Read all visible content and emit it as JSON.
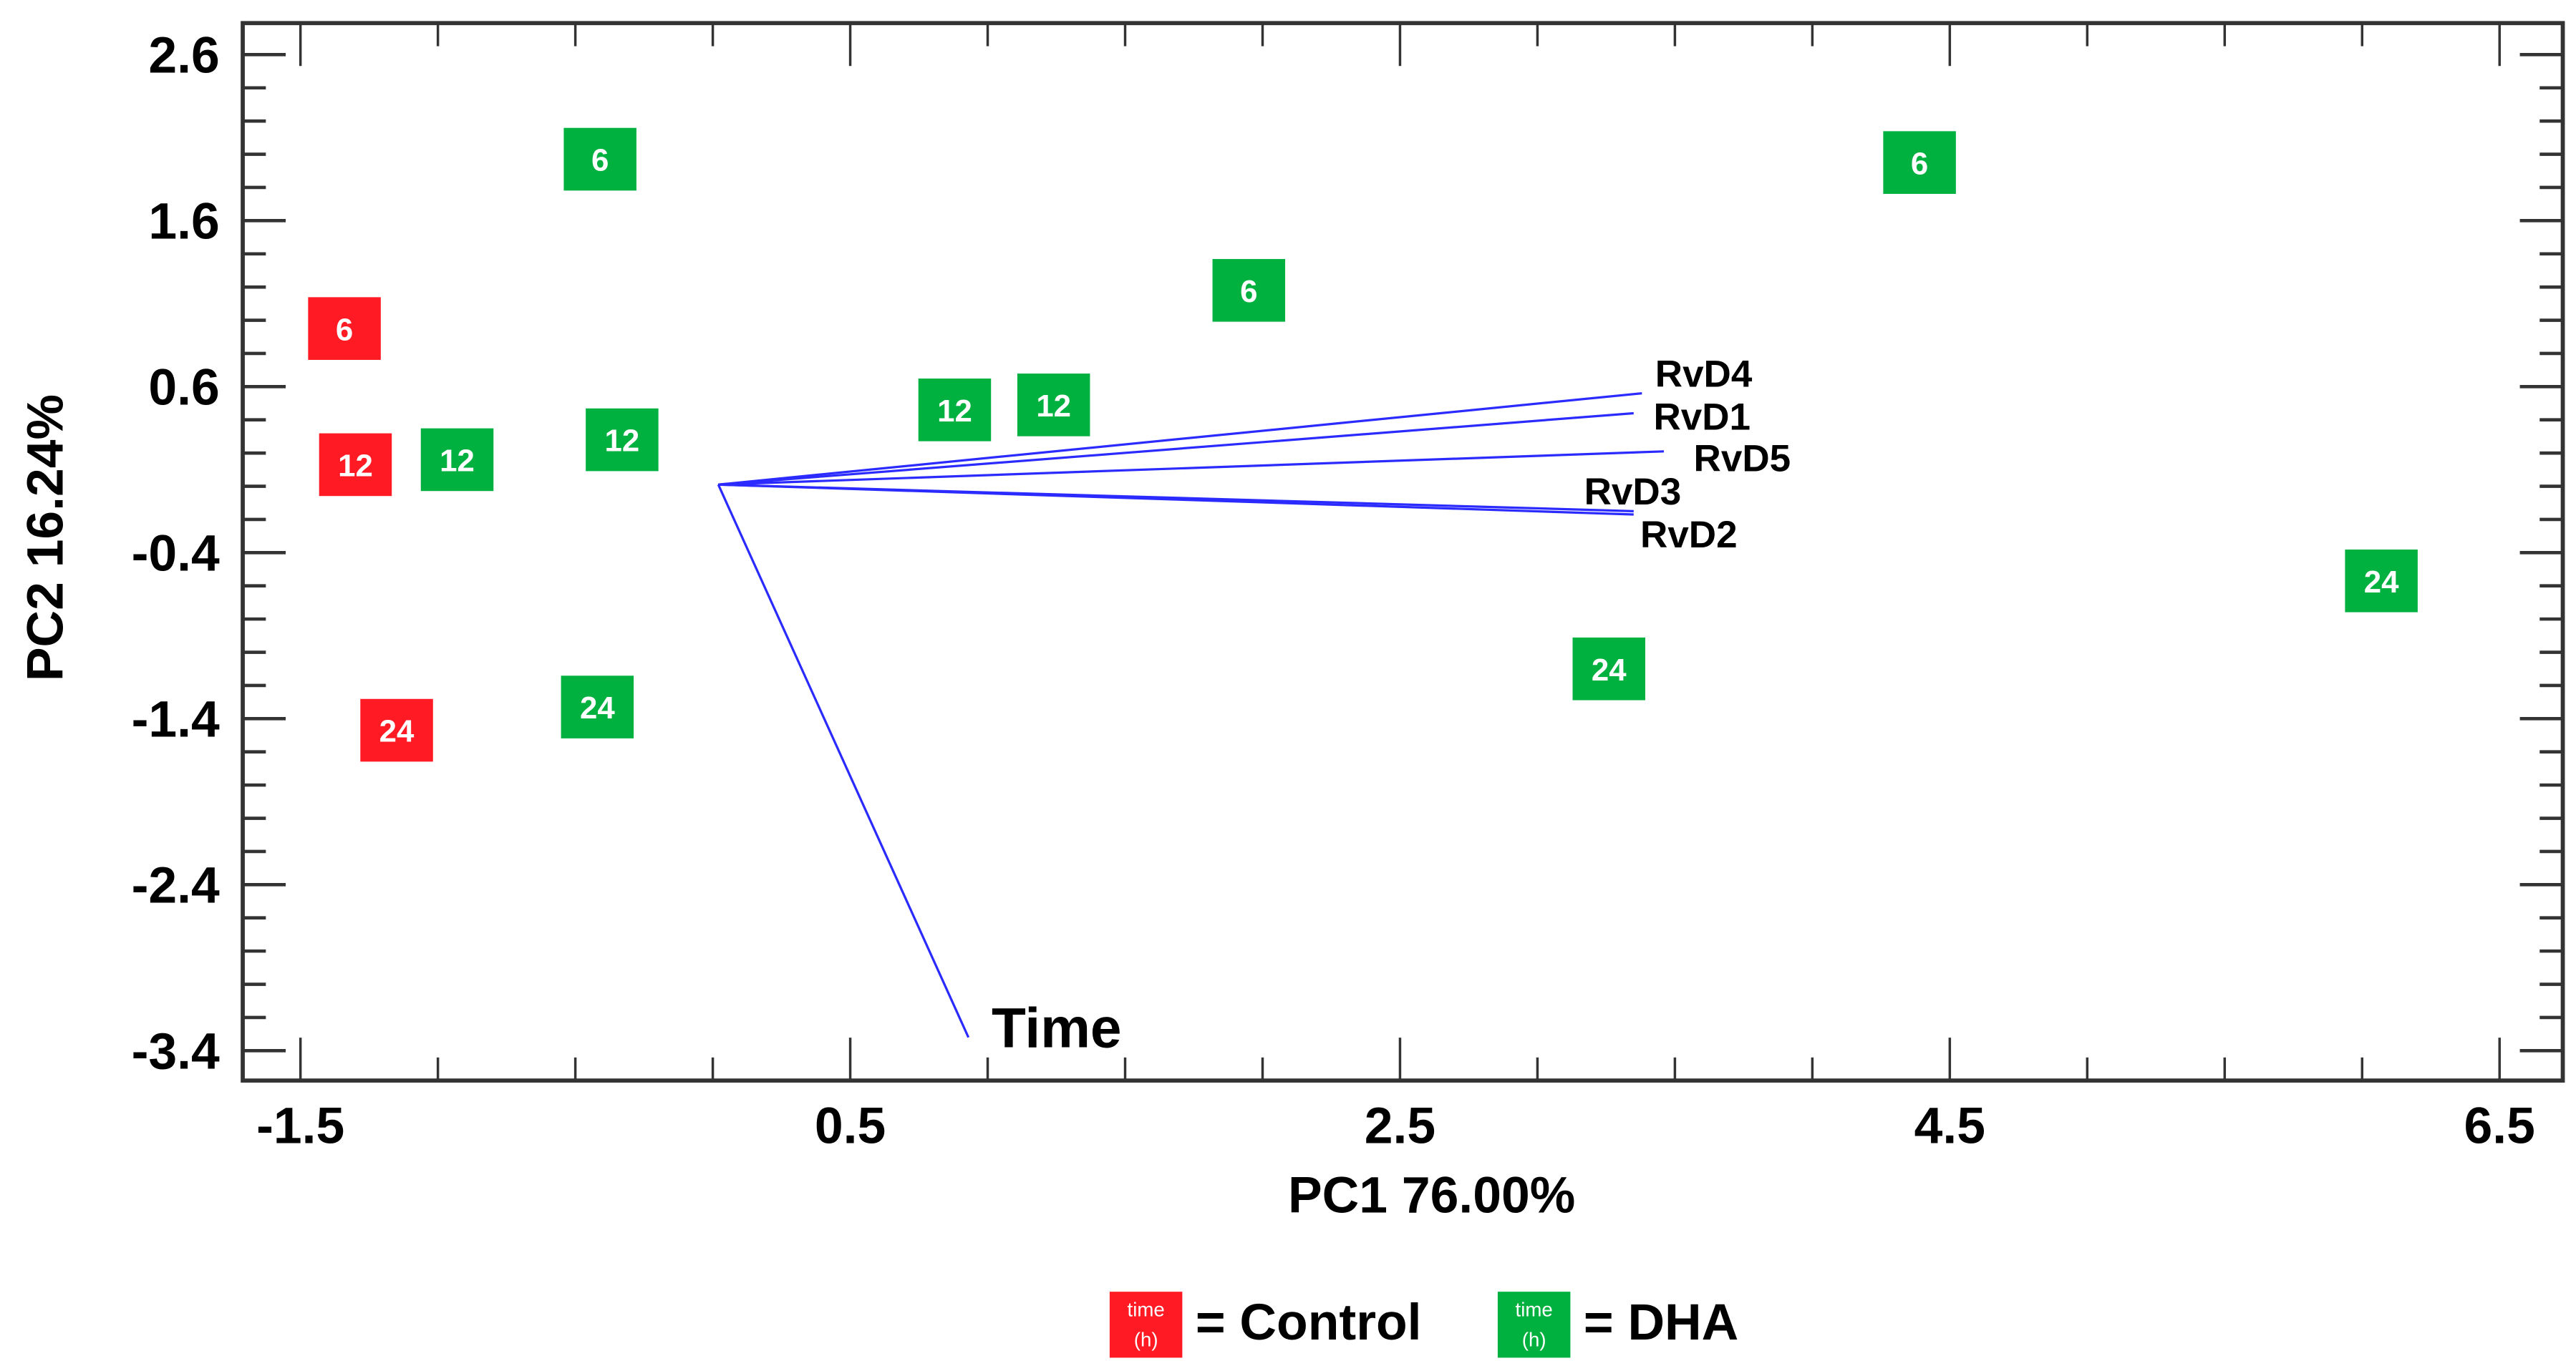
{
  "chart_data": {
    "type": "scatter",
    "subtype": "PCA biplot",
    "xlabel": "PC1 76.00%",
    "ylabel": "PC2 16.24%",
    "xlim": [
      -1.71,
      6.73
    ],
    "ylim": [
      -3.58,
      2.79
    ],
    "xticks": [
      -1.5,
      0.5,
      2.5,
      4.5,
      6.5
    ],
    "xtick_labels": [
      "-1.5",
      "0.5",
      "2.5",
      "4.5",
      "6.5"
    ],
    "x_minor_step": 0.5,
    "yticks": [
      2.6,
      1.6,
      0.6,
      -0.4,
      -1.4,
      -2.4,
      -3.4
    ],
    "ytick_labels": [
      "2.6",
      "1.6",
      "0.6",
      "-0.4",
      "-1.4",
      "-2.4",
      "-3.4"
    ],
    "y_minor_step": 0.2,
    "grid": false,
    "colors": {
      "Control": "#ff1a24",
      "DHA": "#00b140",
      "loading": "#2b2bff"
    },
    "series": [
      {
        "name": "Control",
        "points": [
          {
            "x": -1.34,
            "y": 0.95,
            "label": "6"
          },
          {
            "x": -1.3,
            "y": 0.13,
            "label": "12"
          },
          {
            "x": -1.15,
            "y": -1.47,
            "label": "24"
          }
        ]
      },
      {
        "name": "DHA",
        "points": [
          {
            "x": -0.41,
            "y": 1.97,
            "label": "6"
          },
          {
            "x": 1.95,
            "y": 1.18,
            "label": "6"
          },
          {
            "x": 4.39,
            "y": 1.95,
            "label": "6"
          },
          {
            "x": -0.93,
            "y": 0.16,
            "label": "12"
          },
          {
            "x": -0.33,
            "y": 0.28,
            "label": "12"
          },
          {
            "x": 0.88,
            "y": 0.46,
            "label": "12"
          },
          {
            "x": 1.24,
            "y": 0.49,
            "label": "12"
          },
          {
            "x": -0.42,
            "y": -1.33,
            "label": "24"
          },
          {
            "x": 3.26,
            "y": -1.1,
            "label": "24"
          },
          {
            "x": 6.07,
            "y": -0.57,
            "label": "24"
          }
        ]
      }
    ],
    "loadings_origin": {
      "x": 0.02,
      "y": 0.01
    },
    "loadings": [
      {
        "name": "RvD4",
        "x": 3.38,
        "y": 0.56
      },
      {
        "name": "RvD1",
        "x": 3.35,
        "y": 0.44
      },
      {
        "name": "RvD5",
        "x": 3.46,
        "y": 0.21
      },
      {
        "name": "RvD3",
        "x": 3.35,
        "y": -0.15
      },
      {
        "name": "RvD2",
        "x": 3.35,
        "y": -0.17
      },
      {
        "name": "Time",
        "x": 0.93,
        "y": -3.32
      }
    ],
    "legend": {
      "placement": "bottom-center",
      "marker_text": [
        "time",
        "(h)"
      ],
      "entries": [
        {
          "name": "Control",
          "text": "= Control"
        },
        {
          "name": "DHA",
          "text": "= DHA"
        }
      ]
    }
  }
}
